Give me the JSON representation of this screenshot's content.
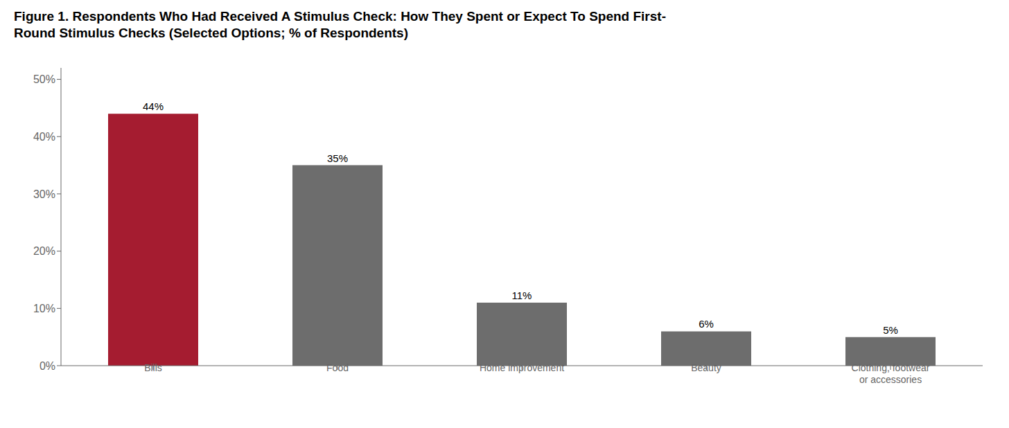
{
  "chart_data": {
    "type": "bar",
    "title": "Figure 1. Respondents Who Had Received A Stimulus Check: How They Spent or Expect To Spend First-\nRound Stimulus Checks (Selected Options; % of Respondents)",
    "categories": [
      "Bills",
      "Food",
      "Home improvement",
      "Beauty",
      "Clothing, footwear\nor accessories"
    ],
    "values": [
      44,
      35,
      11,
      6,
      5
    ],
    "value_labels": [
      "44%",
      "35%",
      "11%",
      "6%",
      "5%"
    ],
    "data_labels": true,
    "colors": [
      "#A51C30",
      "#6D6D6D",
      "#6D6D6D",
      "#6D6D6D",
      "#6D6D6D"
    ],
    "ylim": [
      0,
      52
    ],
    "yticks": [
      {
        "value": 0,
        "label": "0%"
      },
      {
        "value": 10,
        "label": "10%"
      },
      {
        "value": 20,
        "label": "20%"
      },
      {
        "value": 30,
        "label": "30%"
      },
      {
        "value": 40,
        "label": "40%"
      },
      {
        "value": 50,
        "label": "50%"
      }
    ],
    "grid": false
  }
}
